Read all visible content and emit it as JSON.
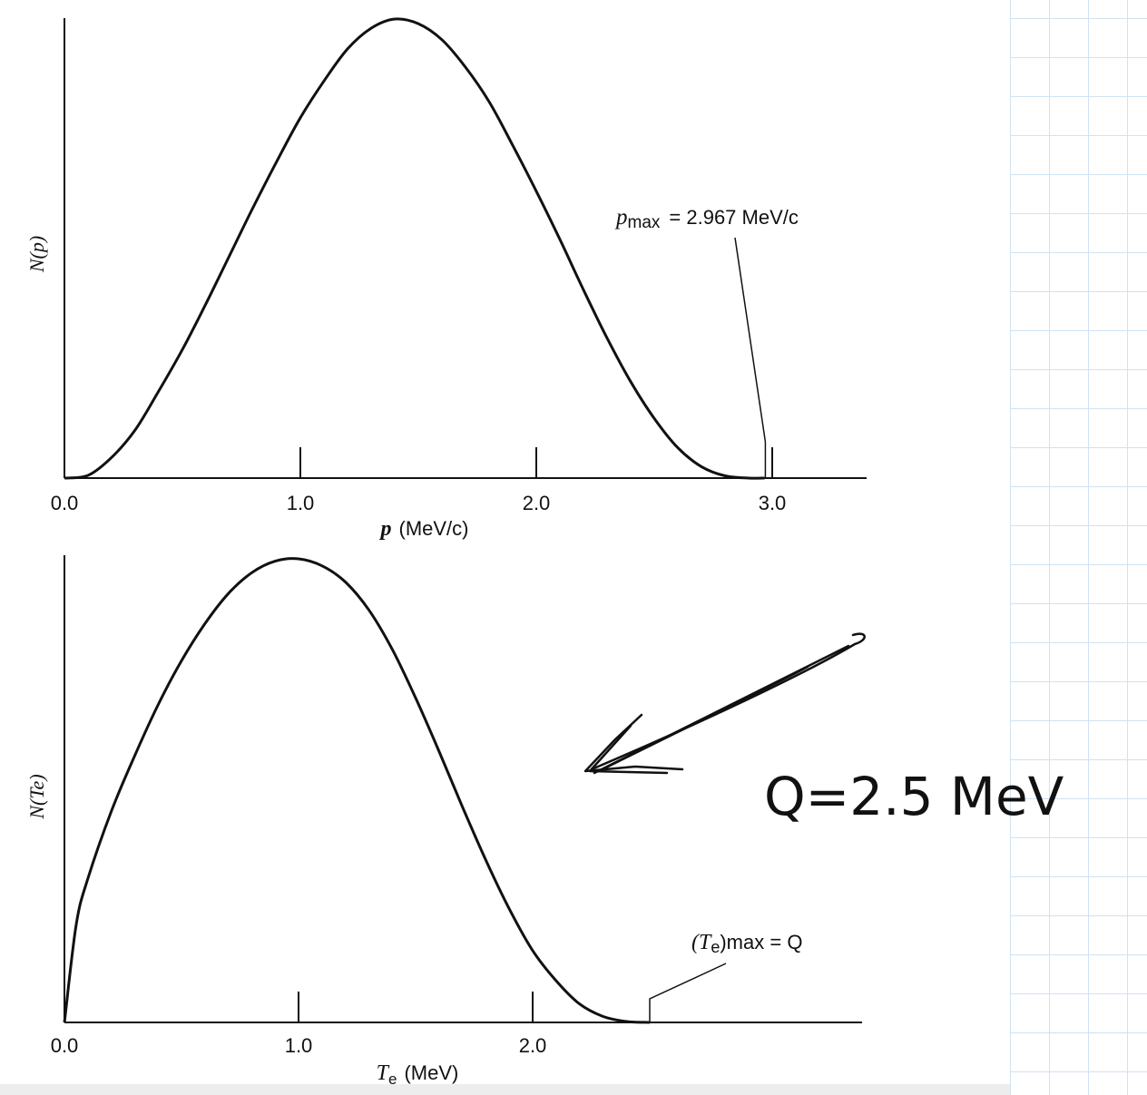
{
  "chart_data": [
    {
      "type": "line",
      "xlabel_var": "p",
      "xlabel_unit": "(MeV/c)",
      "ylabel": "N(p)",
      "x_ticks": [
        "0.0",
        "1.0",
        "2.0",
        "3.0"
      ],
      "xlim": [
        0.0,
        3.4
      ],
      "annotation": {
        "symbol": "p",
        "sub": "max",
        "text": "= 2.967 MeV/c",
        "x": 2.967
      },
      "series": [
        {
          "x": [
            0.0,
            0.1,
            0.2,
            0.3,
            0.4,
            0.5,
            0.6,
            0.7,
            0.8,
            0.9,
            1.0,
            1.1,
            1.2,
            1.3,
            1.4,
            1.5,
            1.6,
            1.7,
            1.8,
            1.9,
            2.0,
            2.1,
            2.2,
            2.3,
            2.4,
            2.5,
            2.6,
            2.7,
            2.8,
            2.9,
            2.967
          ],
          "values": [
            0.0,
            0.006,
            0.045,
            0.105,
            0.19,
            0.28,
            0.38,
            0.485,
            0.59,
            0.69,
            0.785,
            0.865,
            0.935,
            0.98,
            1.0,
            0.99,
            0.955,
            0.895,
            0.82,
            0.725,
            0.625,
            0.52,
            0.41,
            0.305,
            0.21,
            0.13,
            0.066,
            0.025,
            0.005,
            0.0,
            0.0
          ]
        }
      ]
    },
    {
      "type": "line",
      "xlabel_var": "T",
      "xlabel_sub": "e",
      "xlabel_unit": "(MeV)",
      "ylabel": "N(Te)",
      "x_ticks": [
        "0.0",
        "1.0",
        "2.0"
      ],
      "xlim": [
        0.0,
        3.4
      ],
      "annotation": {
        "symbol": "(T",
        "sub": "e",
        "text": ")max = Q",
        "x": 2.5
      },
      "series": [
        {
          "x": [
            0.0,
            0.05,
            0.1,
            0.2,
            0.3,
            0.4,
            0.5,
            0.6,
            0.7,
            0.8,
            0.9,
            1.0,
            1.1,
            1.2,
            1.3,
            1.4,
            1.5,
            1.6,
            1.7,
            1.8,
            1.9,
            2.0,
            2.1,
            2.2,
            2.3,
            2.4,
            2.5
          ],
          "values": [
            0.0,
            0.21,
            0.31,
            0.455,
            0.575,
            0.685,
            0.78,
            0.86,
            0.925,
            0.97,
            0.995,
            1.0,
            0.985,
            0.95,
            0.89,
            0.805,
            0.7,
            0.585,
            0.465,
            0.35,
            0.245,
            0.155,
            0.09,
            0.04,
            0.013,
            0.002,
            0.0
          ]
        }
      ]
    }
  ],
  "handwriting": {
    "text": "Q=2.5 MeV"
  }
}
